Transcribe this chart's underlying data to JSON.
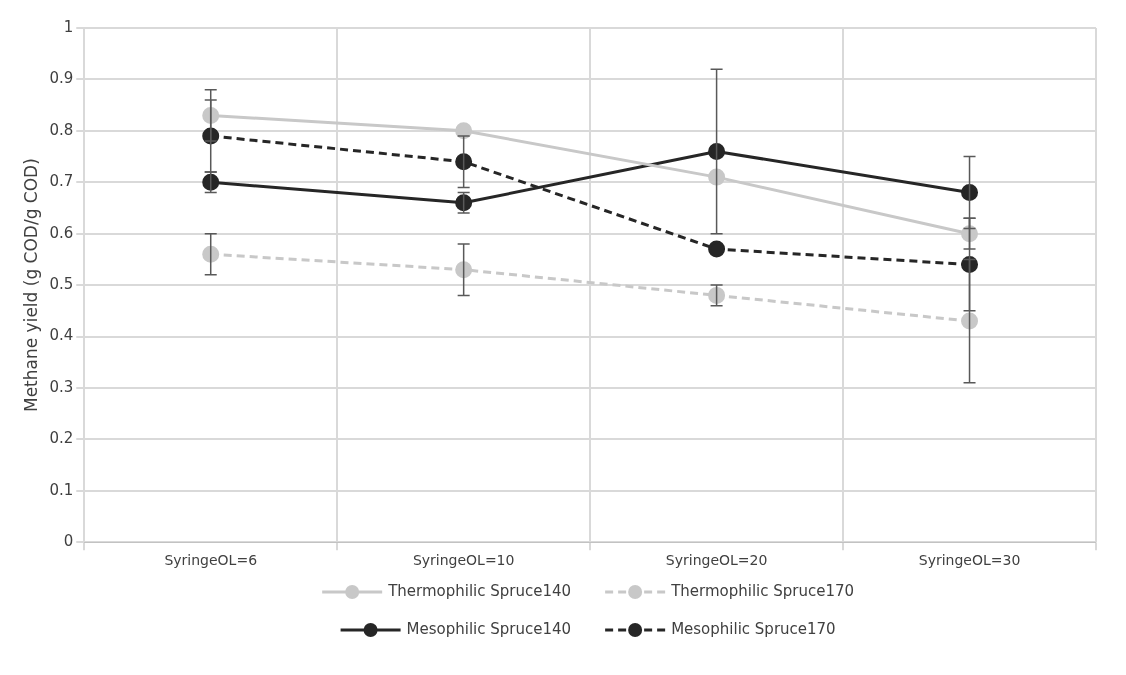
{
  "chart_data": {
    "type": "line",
    "ylabel": "Methane yield (g COD/g COD)",
    "categories": [
      "SyringeOL=6",
      "SyringeOL=10",
      "SyringeOL=20",
      "SyringeOL=30"
    ],
    "series": [
      {
        "name": "Thermophilic Spruce140",
        "color": "#c8c8c8",
        "line_style": "solid",
        "values": [
          0.83,
          0.8,
          0.71,
          0.6
        ],
        "errors": [
          0.05,
          null,
          null,
          0.03
        ]
      },
      {
        "name": "Thermophilic Spruce170",
        "color": "#c8c8c8",
        "line_style": "dashed",
        "values": [
          0.56,
          0.53,
          0.48,
          0.43
        ],
        "errors": [
          0.04,
          0.05,
          0.02,
          0.12
        ]
      },
      {
        "name": "Mesophilic Spruce140",
        "color": "#262626",
        "line_style": "solid",
        "values": [
          0.7,
          0.66,
          0.76,
          0.68
        ],
        "errors": [
          0.02,
          0.02,
          0.16,
          0.07
        ]
      },
      {
        "name": "Mesophilic Spruce170",
        "color": "#262626",
        "line_style": "dashed",
        "values": [
          0.79,
          0.74,
          0.57,
          0.54
        ],
        "errors": [
          0.07,
          0.05,
          null,
          0.09
        ]
      }
    ],
    "ylim": [
      0,
      1
    ],
    "yticks": [
      0,
      0.1,
      0.2,
      0.3,
      0.4,
      0.5,
      0.6,
      0.7,
      0.8,
      0.9,
      1
    ],
    "grid": true,
    "legend": "bottom",
    "marker": "circle"
  }
}
